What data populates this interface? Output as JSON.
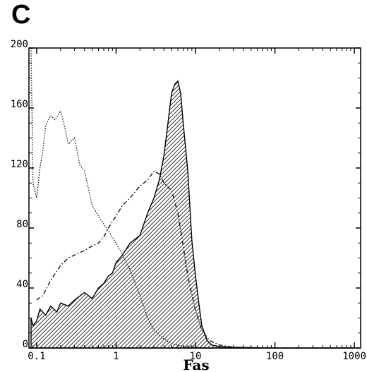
{
  "panel_label": "C",
  "chart_data": {
    "type": "area",
    "title": "",
    "xlabel": "Fas",
    "ylabel": "",
    "x_scale": "log",
    "xlim": [
      0.08,
      1200
    ],
    "ylim": [
      0,
      200
    ],
    "y_ticks": [
      0,
      40,
      80,
      120,
      160,
      200
    ],
    "y_tick_labels": [
      "0",
      "40",
      "80",
      "120",
      "160",
      "200"
    ],
    "x_ticks": [
      0.1,
      1,
      10,
      100,
      1000
    ],
    "x_tick_labels": [
      "0.1",
      "1",
      "10",
      "100",
      "1000"
    ],
    "grid": false,
    "legend": "none",
    "series": [
      {
        "style": "shaded-hatched",
        "x": [
          0.085,
          0.09,
          0.1,
          0.11,
          0.13,
          0.15,
          0.18,
          0.2,
          0.25,
          0.3,
          0.4,
          0.5,
          0.6,
          0.7,
          0.8,
          0.9,
          1.0,
          1.2,
          1.5,
          2.0,
          2.5,
          3.0,
          3.5,
          4.0,
          4.5,
          5.0,
          5.5,
          6.0,
          6.5,
          7.0,
          8.0,
          9.0,
          10,
          11,
          12,
          14,
          16,
          20,
          30,
          50,
          100,
          1000
        ],
        "y": [
          20,
          15,
          18,
          26,
          22,
          28,
          24,
          30,
          28,
          32,
          37,
          33,
          40,
          43,
          48,
          50,
          57,
          62,
          70,
          75,
          90,
          100,
          112,
          128,
          150,
          170,
          176,
          178,
          170,
          150,
          118,
          72,
          48,
          30,
          15,
          5,
          2,
          1,
          0.5,
          0.3,
          0,
          0
        ]
      },
      {
        "style": "dotted",
        "x": [
          0.085,
          0.09,
          0.1,
          0.11,
          0.12,
          0.13,
          0.15,
          0.17,
          0.2,
          0.22,
          0.25,
          0.3,
          0.35,
          0.4,
          0.5,
          0.6,
          0.8,
          1.0,
          1.2,
          1.5,
          2.0,
          2.5,
          3.0,
          4.0,
          5.0,
          7.0,
          10,
          15,
          30,
          100,
          1000
        ],
        "y": [
          200,
          110,
          100,
          120,
          132,
          148,
          155,
          152,
          158,
          150,
          136,
          140,
          122,
          118,
          95,
          88,
          78,
          70,
          62,
          52,
          35,
          20,
          12,
          6,
          3,
          1,
          0.5,
          0,
          0,
          0,
          0
        ]
      },
      {
        "style": "dash-dot",
        "x": [
          0.1,
          0.12,
          0.15,
          0.2,
          0.25,
          0.3,
          0.4,
          0.5,
          0.6,
          0.7,
          0.8,
          1.0,
          1.2,
          1.5,
          2.0,
          2.5,
          3.0,
          3.5,
          4.0,
          5.0,
          6.0,
          7.0,
          8.0,
          10,
          12,
          15,
          20,
          30,
          100,
          1000
        ],
        "y": [
          32,
          35,
          45,
          55,
          60,
          62,
          65,
          68,
          70,
          74,
          80,
          88,
          95,
          100,
          108,
          112,
          118,
          116,
          110,
          105,
          90,
          68,
          48,
          25,
          12,
          5,
          2,
          0.5,
          0,
          0
        ]
      }
    ]
  }
}
